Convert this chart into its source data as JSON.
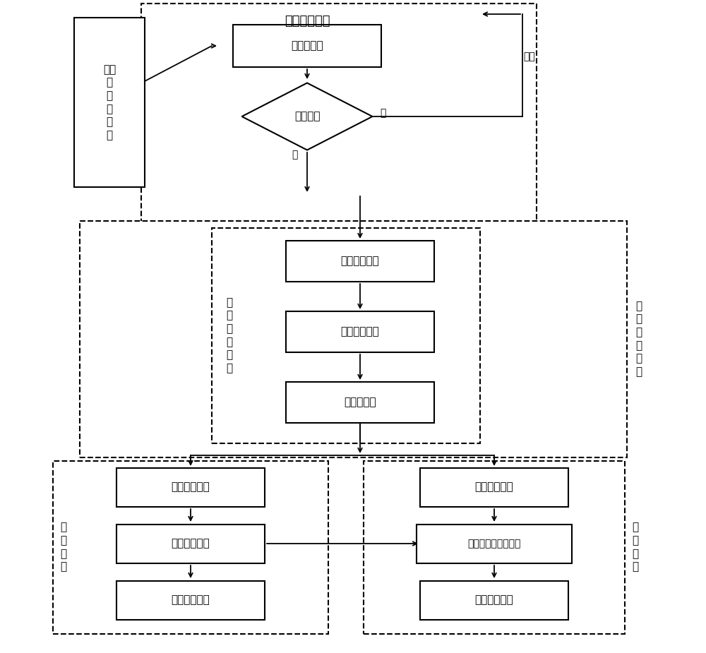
{
  "bg_color": "#ffffff",
  "title_fast": "图像快速识别",
  "title_precise": "图像精确识别",
  "label_bg_remove": "青景区\n域去\n除",
  "label_color_judge": "颜色\n判\n断",
  "label_shape_judge": "形状\n判\n断",
  "text_read_image": "读取\n和\n显\n示\n图\n像",
  "text_coarse_scan": "图像粗扫描",
  "text_fire_suspect": "有火嫌痑",
  "text_threshold_seg": "图像阈値分割",
  "text_region_mark1": "图像区域标记",
  "text_remove_small": "去除小区域",
  "text_flame_thresh": "火焰边界阈値",
  "text_flame_extract": "火焰边界提取",
  "text_remove_interf": "去除干扰因素",
  "text_region_mark2": "图像区域标记",
  "text_calc_area": "计算火焰面积、周长",
  "text_shape_judge": "火焰形状判断",
  "label_yes": "是",
  "label_no": "否",
  "label_exit": "退出"
}
